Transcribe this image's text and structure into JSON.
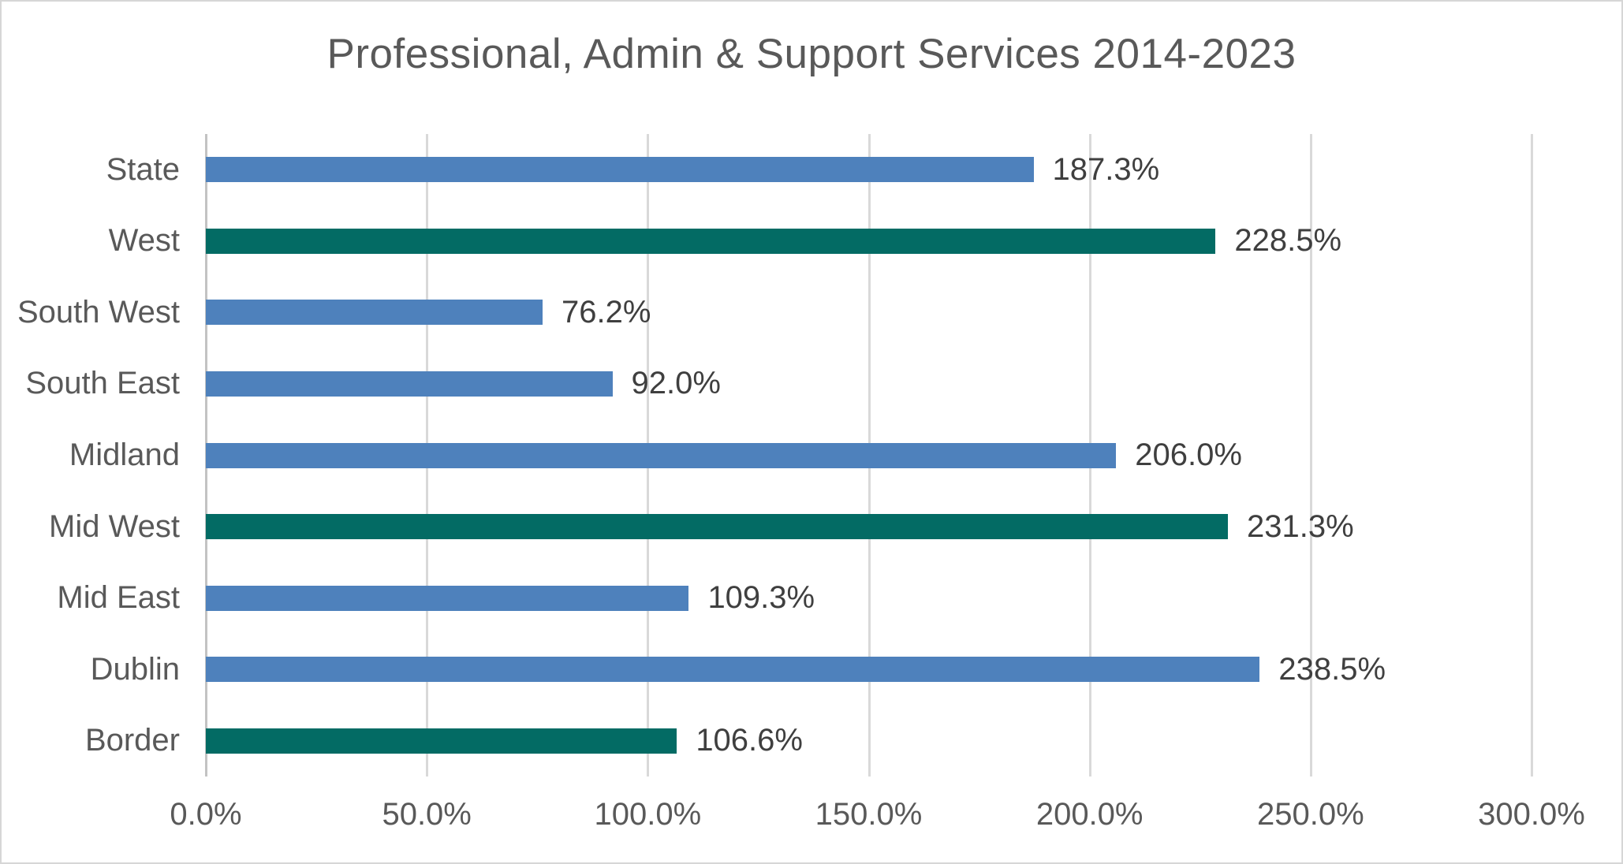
{
  "chart_data": {
    "type": "bar",
    "orientation": "horizontal",
    "title": "Professional, Admin & Support Services 2014-2023",
    "categories": [
      "State",
      "West",
      "South West",
      "South East",
      "Midland",
      "Mid West",
      "Mid East",
      "Dublin",
      "Border"
    ],
    "values": [
      187.3,
      228.5,
      76.2,
      92.0,
      206.0,
      231.3,
      109.3,
      238.5,
      106.6
    ],
    "data_labels": [
      "187.3%",
      "228.5%",
      "76.2%",
      "92.0%",
      "206.0%",
      "231.3%",
      "109.3%",
      "238.5%",
      "106.6%"
    ],
    "bar_colors": [
      "#4e81bc",
      "#036b64",
      "#4e81bc",
      "#4e81bc",
      "#4e81bc",
      "#036b64",
      "#4e81bc",
      "#4e81bc",
      "#036b64"
    ],
    "xlabel": "",
    "ylabel": "",
    "xlim": [
      0,
      300
    ],
    "x_ticks": [
      {
        "value": 0,
        "label": "0.0%"
      },
      {
        "value": 50,
        "label": "50.0%"
      },
      {
        "value": 100,
        "label": "100.0%"
      },
      {
        "value": 150,
        "label": "150.0%"
      },
      {
        "value": 200,
        "label": "200.0%"
      },
      {
        "value": 250,
        "label": "250.0%"
      },
      {
        "value": 300,
        "label": "300.0%"
      }
    ],
    "grid": true,
    "legend": false,
    "colors": {
      "blue_series": "#4e81bc",
      "teal_series": "#036b64",
      "gridline": "#d9d9d9",
      "zero_line": "#c3c3c3",
      "title_text": "#595959",
      "axis_text": "#595959",
      "data_label_text": "#3f3f3f",
      "background": "#ffffff",
      "canvas_border": "#d6d6d6"
    }
  }
}
